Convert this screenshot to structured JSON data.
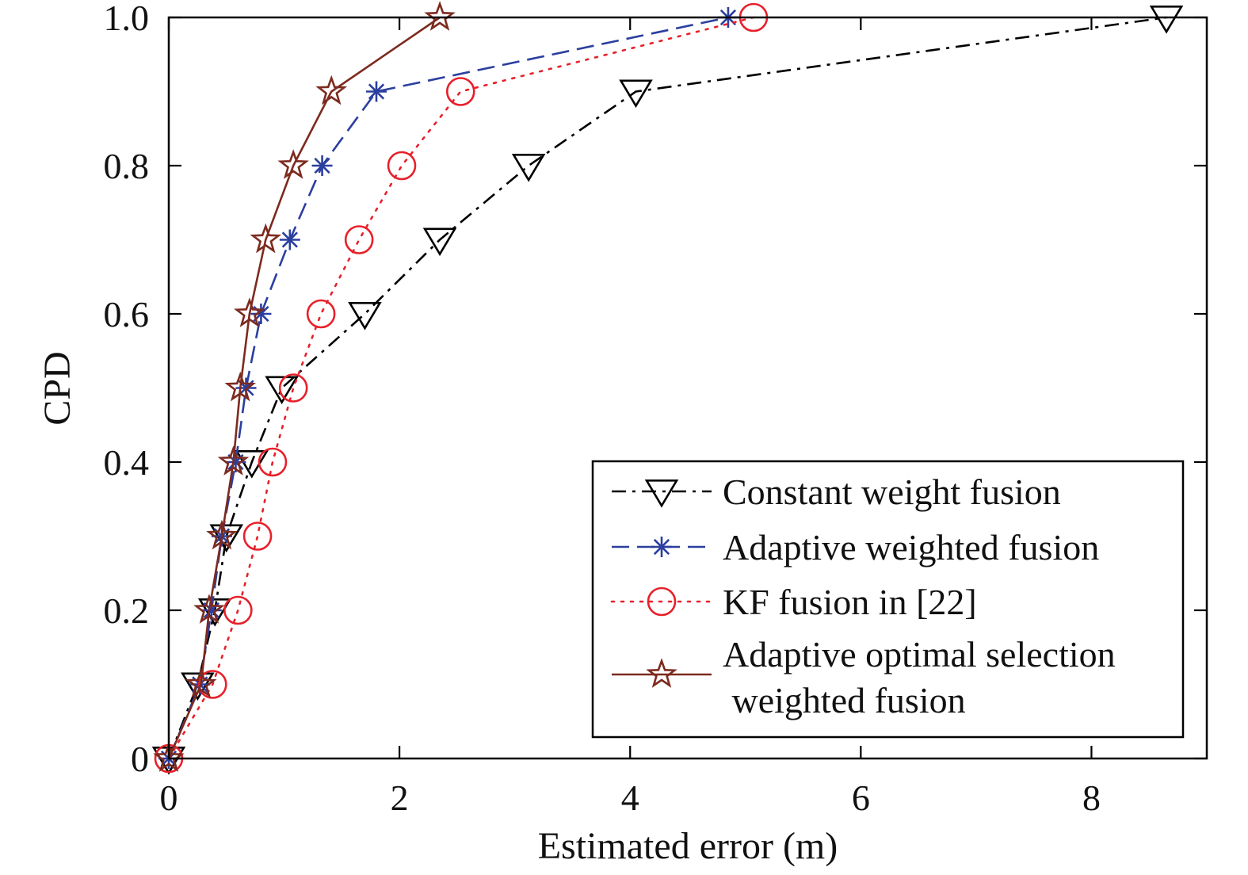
{
  "chart_data": {
    "type": "line",
    "title": "",
    "xlabel": "Estimated error (m)",
    "ylabel": "CPD",
    "xlim": [
      0,
      9
    ],
    "ylim": [
      0,
      1
    ],
    "xticks": [
      0,
      2,
      4,
      6,
      8
    ],
    "xtick_labels": [
      "0",
      "2",
      "4",
      "6",
      "8"
    ],
    "yticks": [
      0,
      0.2,
      0.4,
      0.6,
      0.8,
      1.0
    ],
    "ytick_labels": [
      "0",
      "0.2",
      "0.4",
      "0.6",
      "0.8",
      "1.0"
    ],
    "grid": false,
    "legend_position": "bottom-right",
    "series": [
      {
        "name": "Constant weight fusion",
        "color": "#000000",
        "line_style": "dash-dot",
        "marker": "triangle-down",
        "x": [
          0.0,
          0.25,
          0.4,
          0.5,
          0.72,
          0.98,
          1.7,
          2.35,
          3.12,
          4.05,
          8.65
        ],
        "y": [
          0.0,
          0.1,
          0.2,
          0.3,
          0.4,
          0.5,
          0.6,
          0.7,
          0.8,
          0.9,
          1.0
        ]
      },
      {
        "name": "Adaptive weighted fusion",
        "color": "#2b3f9e",
        "line_style": "dashed",
        "marker": "asterisk",
        "x": [
          0.0,
          0.27,
          0.37,
          0.46,
          0.58,
          0.67,
          0.8,
          1.05,
          1.33,
          1.8,
          4.85
        ],
        "y": [
          0.0,
          0.1,
          0.2,
          0.3,
          0.4,
          0.5,
          0.6,
          0.7,
          0.8,
          0.9,
          1.0
        ]
      },
      {
        "name": "KF fusion in [22]",
        "color": "#e8202a",
        "line_style": "dotted",
        "marker": "circle",
        "x": [
          0.0,
          0.38,
          0.6,
          0.77,
          0.9,
          1.08,
          1.32,
          1.65,
          2.02,
          2.53,
          5.07
        ],
        "y": [
          0.0,
          0.1,
          0.2,
          0.3,
          0.4,
          0.5,
          0.6,
          0.7,
          0.8,
          0.9,
          1.0
        ]
      },
      {
        "name": "Adaptive optimal selection weighted fusion",
        "legend_lines": [
          "Adaptive optimal selection",
          " weighted fusion"
        ],
        "color": "#7d2a1f",
        "line_style": "solid",
        "marker": "star",
        "x": [
          0.0,
          0.28,
          0.35,
          0.46,
          0.56,
          0.62,
          0.7,
          0.84,
          1.08,
          1.41,
          2.35
        ],
        "y": [
          0.0,
          0.1,
          0.2,
          0.3,
          0.4,
          0.5,
          0.6,
          0.7,
          0.8,
          0.9,
          1.0
        ]
      }
    ]
  }
}
